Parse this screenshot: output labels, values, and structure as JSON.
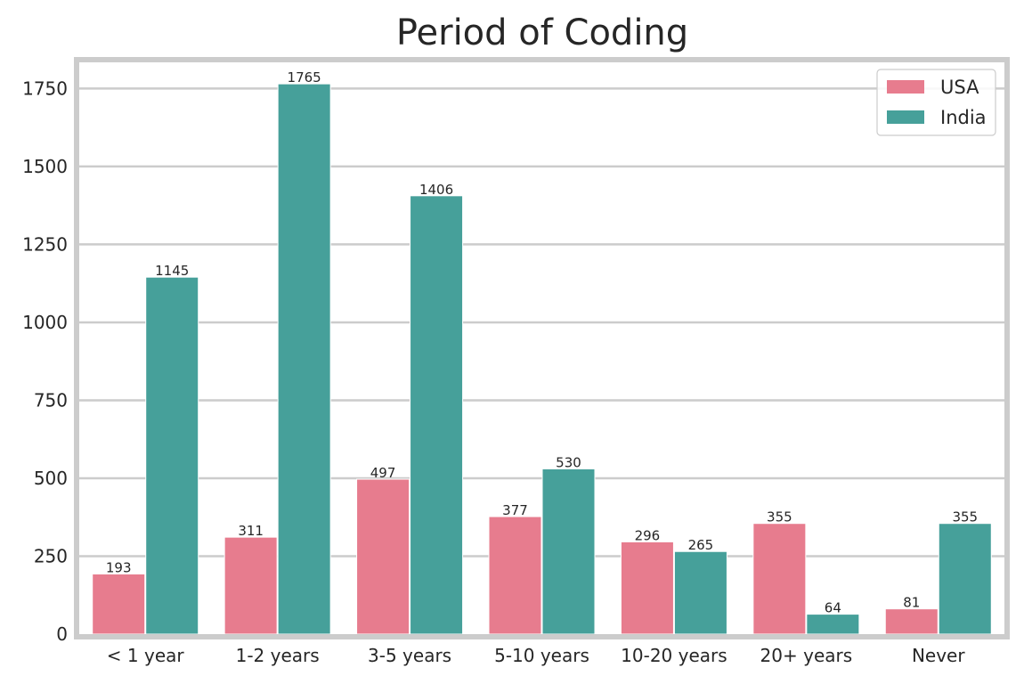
{
  "chart_data": {
    "type": "bar",
    "title": "Period of Coding",
    "xlabel": "",
    "ylabel": "",
    "categories": [
      "< 1 year",
      "1-2 years",
      "3-5 years",
      "5-10 years",
      "10-20 years",
      "20+ years",
      "Never"
    ],
    "series": [
      {
        "name": "USA",
        "color": "#e77c8e",
        "values": [
          193,
          311,
          497,
          377,
          296,
          355,
          81
        ]
      },
      {
        "name": "India",
        "color": "#46a09a",
        "values": [
          1145,
          1765,
          1406,
          530,
          265,
          64,
          355
        ]
      }
    ],
    "ylim": [
      0,
      1850
    ],
    "yticks": [
      0,
      250,
      500,
      750,
      1000,
      1250,
      1500,
      1750
    ],
    "grid": true,
    "legend_position": "top-right",
    "data_labels": true
  }
}
